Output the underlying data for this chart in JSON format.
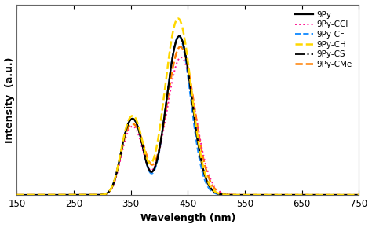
{
  "title": "",
  "xlabel": "Wavelength (nm)",
  "ylabel": "Intensity  (a.u.)",
  "xlim": [
    150,
    750
  ],
  "ylim": [
    0,
    1.08
  ],
  "xticks": [
    150,
    250,
    350,
    450,
    550,
    650,
    750
  ],
  "background_color": "#ffffff",
  "series": {
    "9Py": {
      "color": "#000000",
      "linestyle": "-",
      "linewidth": 1.6,
      "zorder": 5
    },
    "9Py-CCl": {
      "color": "#ff1493",
      "linestyle": ":",
      "linewidth": 1.4,
      "zorder": 4
    },
    "9Py-CF": {
      "color": "#1e90ff",
      "linestyle": "--",
      "linewidth": 1.4,
      "zorder": 3
    },
    "9Py-CH": {
      "color": "#ffd700",
      "linestyle": "--",
      "linewidth": 1.8,
      "zorder": 6
    },
    "9Py-CS": {
      "color": "#111111",
      "linestyle": "-.",
      "linewidth": 1.4,
      "zorder": 4
    },
    "9Py-CMe": {
      "color": "#ff7f00",
      "linestyle": "--",
      "linewidth": 1.8,
      "zorder": 3
    }
  }
}
